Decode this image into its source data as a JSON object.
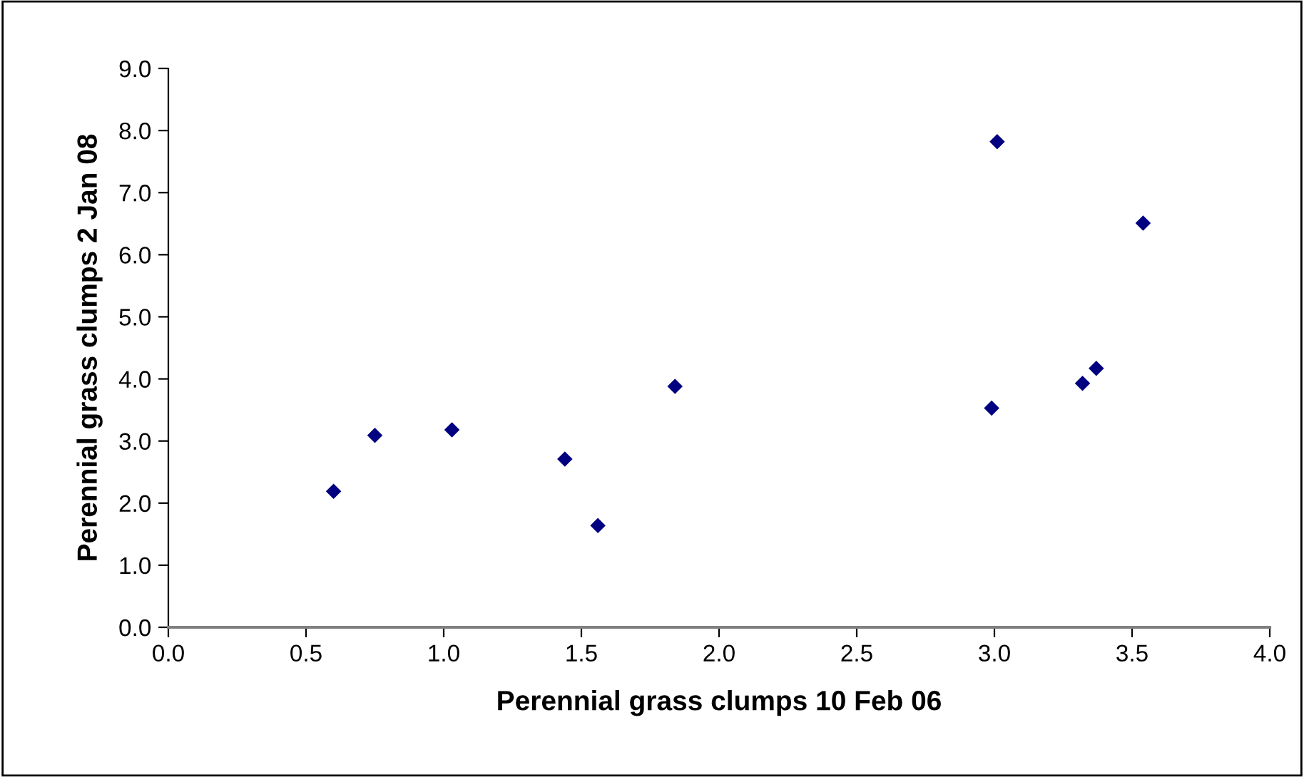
{
  "chart_data": {
    "type": "scatter",
    "xlabel": "Perennial grass clumps 10 Feb 06",
    "ylabel": "Perennial grass clumps 2 Jan 08",
    "x": [
      0.6,
      0.75,
      1.03,
      1.44,
      1.56,
      1.84,
      3.01,
      3.54,
      3.37,
      3.32,
      2.99
    ],
    "series": [
      {
        "color": "#000080",
        "values": [
          2.19,
          3.09,
          3.18,
          2.71,
          1.64,
          3.88,
          7.82,
          6.51,
          4.17,
          3.93,
          3.53
        ]
      }
    ],
    "marker": "diamond",
    "xlim": [
      0,
      4
    ],
    "xticks": [
      {
        "value": 0,
        "label": "0.0"
      },
      0.5,
      {
        "value": 1,
        "label": "1.0"
      },
      1.5,
      {
        "value": 2,
        "label": "2.0"
      },
      2.5,
      {
        "value": 3,
        "label": "3.0"
      },
      3.5,
      {
        "value": 4,
        "label": "4.0"
      }
    ],
    "ylim": [
      0,
      9
    ],
    "yticks": [
      {
        "value": 0,
        "label": "0.0"
      },
      {
        "value": 1,
        "label": "1.0"
      },
      {
        "value": 2,
        "label": "2.0"
      },
      {
        "value": 3,
        "label": "3.0"
      },
      {
        "value": 4,
        "label": "4.0"
      },
      {
        "value": 5,
        "label": "5.0"
      },
      {
        "value": 6,
        "label": "6.0"
      },
      {
        "value": 7,
        "label": "7.0"
      },
      {
        "value": 8,
        "label": "8.0"
      },
      {
        "value": 9,
        "label": "9.0"
      }
    ],
    "grid": false
  }
}
